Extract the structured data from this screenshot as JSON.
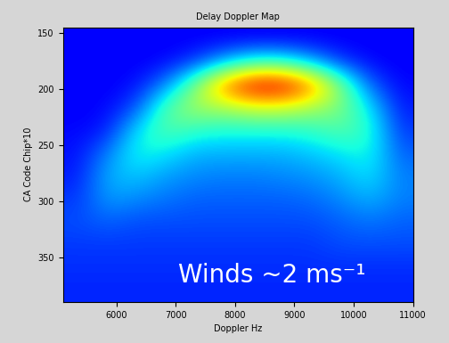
{
  "chart_data": {
    "type": "heatmap",
    "title": "Delay Doppler Map",
    "x_label": "Doppler Hz",
    "y_label": "CA Code Chip*10",
    "annotations": [
      "Winds ~2 ms⁻¹"
    ],
    "xlim": [
      5100,
      11000
    ],
    "xticks": [
      6000,
      7000,
      8000,
      9000,
      10000,
      11000
    ],
    "ylim": [
      390,
      145
    ],
    "yticks": [
      150,
      200,
      250,
      300,
      350
    ],
    "color_range": [
      0,
      1
    ],
    "cells": [
      [
        0.12,
        0.12,
        0.12,
        0.12,
        0.12,
        0.12,
        0.12,
        0.12,
        0.12,
        0.12,
        0.12,
        0.12
      ],
      [
        0.12,
        0.12,
        0.12,
        0.13,
        0.18,
        0.3,
        0.4,
        0.4,
        0.3,
        0.18,
        0.13,
        0.12
      ],
      [
        0.12,
        0.12,
        0.14,
        0.25,
        0.5,
        0.8,
        0.95,
        0.95,
        0.8,
        0.5,
        0.22,
        0.13
      ],
      [
        0.12,
        0.13,
        0.2,
        0.45,
        0.55,
        0.55,
        0.6,
        0.6,
        0.55,
        0.5,
        0.35,
        0.15
      ],
      [
        0.13,
        0.15,
        0.35,
        0.45,
        0.4,
        0.38,
        0.38,
        0.38,
        0.4,
        0.45,
        0.4,
        0.18
      ],
      [
        0.14,
        0.25,
        0.38,
        0.35,
        0.3,
        0.3,
        0.3,
        0.3,
        0.32,
        0.35,
        0.38,
        0.22
      ],
      [
        0.15,
        0.3,
        0.32,
        0.28,
        0.26,
        0.25,
        0.25,
        0.26,
        0.27,
        0.3,
        0.35,
        0.25
      ],
      [
        0.18,
        0.28,
        0.26,
        0.24,
        0.22,
        0.22,
        0.22,
        0.22,
        0.23,
        0.26,
        0.3,
        0.25
      ],
      [
        0.2,
        0.22,
        0.2,
        0.2,
        0.2,
        0.2,
        0.2,
        0.2,
        0.2,
        0.22,
        0.24,
        0.22
      ],
      [
        0.18,
        0.18,
        0.18,
        0.18,
        0.18,
        0.18,
        0.18,
        0.18,
        0.18,
        0.2,
        0.2,
        0.2
      ],
      [
        0.17,
        0.17,
        0.17,
        0.17,
        0.17,
        0.17,
        0.17,
        0.17,
        0.17,
        0.17,
        0.17,
        0.17
      ],
      [
        0.16,
        0.16,
        0.16,
        0.16,
        0.16,
        0.16,
        0.16,
        0.16,
        0.16,
        0.16,
        0.16,
        0.16
      ]
    ]
  }
}
